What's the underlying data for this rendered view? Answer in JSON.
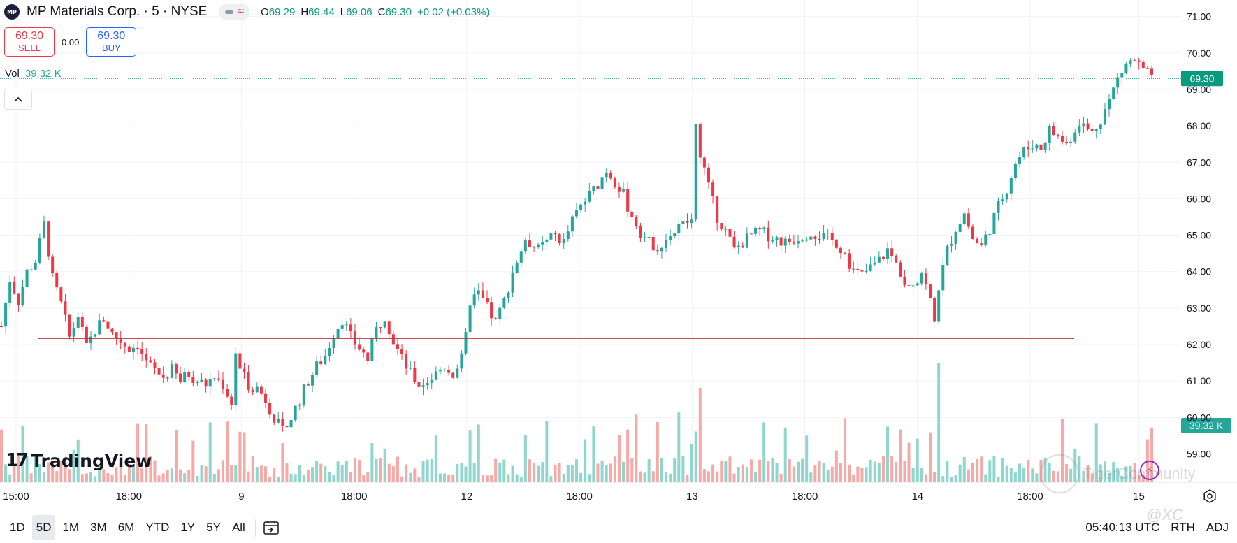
{
  "header": {
    "logo_text": "MP",
    "title": "MP Materials Corp. · 5 · NYSE",
    "status_icons": [
      "market-status-dash-icon",
      "data-delay-wave-icon"
    ],
    "ohlc": {
      "o_label": "O",
      "o": "69.29",
      "h_label": "H",
      "h": "69.44",
      "l_label": "L",
      "l": "69.06",
      "c_label": "C",
      "c": "69.30",
      "change": "+0.02 (+0.03%)"
    }
  },
  "trade": {
    "sell_price": "69.30",
    "sell_label": "SELL",
    "spread": "0.00",
    "buy_price": "69.30",
    "buy_label": "BUY"
  },
  "volume_legend": {
    "label": "Vol",
    "value": "39.32 K"
  },
  "collapse_icon": "chevron-up-icon",
  "branding": {
    "logo_mark": "17",
    "name": "TradingView"
  },
  "watermark": {
    "text": "TigerCommunity",
    "handle": "@XC"
  },
  "bottom_bar": {
    "ranges": [
      "1D",
      "5D",
      "1M",
      "3M",
      "6M",
      "YTD",
      "1Y",
      "5Y",
      "All"
    ],
    "active_range": "5D",
    "time": "05:40:13 UTC",
    "rth": "RTH",
    "adj": "ADJ"
  },
  "colors": {
    "up": "#26a69a",
    "down": "#f23645",
    "vol_up": "#8fd6cd",
    "vol_down": "#f7a9a7",
    "price_tag": "#089981",
    "horizontal_line": "#c2313c"
  },
  "chart_data": {
    "type": "candlestick",
    "symbol": "MP",
    "interval": "5",
    "y_axis": {
      "ticks": [
        "71.00",
        "70.00",
        "69.00",
        "68.00",
        "67.00",
        "66.00",
        "65.00",
        "64.00",
        "63.00",
        "62.00",
        "61.00",
        "60.00",
        "59.00"
      ],
      "range": [
        58.3,
        71.3
      ]
    },
    "x_axis": {
      "ticks": [
        "15:00",
        "18:00",
        "9",
        "18:00",
        "12",
        "18:00",
        "13",
        "18:00",
        "14",
        "18:00",
        "15"
      ]
    },
    "last_price": 69.3,
    "last_price_label": "69.30",
    "last_volume_label": "39.32 K",
    "horizontal_line": {
      "price": 62.17
    },
    "price_path": [
      [
        0,
        62.5
      ],
      [
        2,
        63.8
      ],
      [
        4,
        63.2
      ],
      [
        6,
        64.0
      ],
      [
        8,
        64.3
      ],
      [
        10,
        65.3
      ],
      [
        12,
        63.8
      ],
      [
        14,
        63.1
      ],
      [
        16,
        62.2
      ],
      [
        18,
        62.8
      ],
      [
        20,
        61.9
      ],
      [
        22,
        62.4
      ],
      [
        24,
        62.7
      ],
      [
        26,
        62.3
      ],
      [
        28,
        62.1
      ],
      [
        30,
        61.9
      ],
      [
        32,
        62.0
      ],
      [
        34,
        61.5
      ],
      [
        36,
        61.3
      ],
      [
        38,
        61.1
      ],
      [
        40,
        61.3
      ],
      [
        42,
        61.0
      ],
      [
        44,
        61.2
      ],
      [
        46,
        61.0
      ],
      [
        48,
        60.9
      ],
      [
        50,
        61.1
      ],
      [
        52,
        60.9
      ],
      [
        54,
        60.4
      ],
      [
        55,
        61.8
      ],
      [
        56,
        61.3
      ],
      [
        58,
        60.9
      ],
      [
        60,
        60.8
      ],
      [
        62,
        60.5
      ],
      [
        64,
        60.0
      ],
      [
        66,
        59.6
      ],
      [
        68,
        60.0
      ],
      [
        70,
        60.5
      ],
      [
        72,
        61.0
      ],
      [
        74,
        61.4
      ],
      [
        76,
        61.7
      ],
      [
        78,
        62.3
      ],
      [
        80,
        62.7
      ],
      [
        82,
        62.2
      ],
      [
        84,
        61.9
      ],
      [
        86,
        61.6
      ],
      [
        88,
        62.4
      ],
      [
        90,
        62.8
      ],
      [
        92,
        62.1
      ],
      [
        94,
        61.6
      ],
      [
        96,
        61.2
      ],
      [
        98,
        60.9
      ],
      [
        100,
        61.0
      ],
      [
        102,
        61.2
      ],
      [
        104,
        61.4
      ],
      [
        106,
        61.2
      ],
      [
        108,
        61.6
      ],
      [
        109,
        62.2
      ],
      [
        110,
        63.2
      ],
      [
        112,
        63.4
      ],
      [
        114,
        63.0
      ],
      [
        116,
        62.6
      ],
      [
        118,
        63.2
      ],
      [
        120,
        64.0
      ],
      [
        122,
        64.6
      ],
      [
        124,
        64.8
      ],
      [
        126,
        64.6
      ],
      [
        128,
        64.8
      ],
      [
        130,
        65.0
      ],
      [
        132,
        64.8
      ],
      [
        134,
        65.4
      ],
      [
        136,
        65.8
      ],
      [
        138,
        66.1
      ],
      [
        140,
        66.4
      ],
      [
        142,
        66.8
      ],
      [
        144,
        66.5
      ],
      [
        146,
        66.1
      ],
      [
        148,
        65.5
      ],
      [
        150,
        65.1
      ],
      [
        152,
        64.8
      ],
      [
        154,
        64.7
      ],
      [
        156,
        64.9
      ],
      [
        158,
        65.1
      ],
      [
        160,
        65.3
      ],
      [
        162,
        65.4
      ],
      [
        163,
        67.9
      ],
      [
        164,
        67.3
      ],
      [
        166,
        66.3
      ],
      [
        168,
        65.5
      ],
      [
        170,
        65.1
      ],
      [
        172,
        64.6
      ],
      [
        174,
        64.8
      ],
      [
        176,
        65.0
      ],
      [
        178,
        65.1
      ],
      [
        180,
        65.0
      ],
      [
        182,
        64.9
      ],
      [
        184,
        64.8
      ],
      [
        186,
        64.9
      ],
      [
        188,
        65.0
      ],
      [
        190,
        65.1
      ],
      [
        192,
        65.0
      ],
      [
        194,
        64.9
      ],
      [
        196,
        64.8
      ],
      [
        198,
        64.5
      ],
      [
        200,
        64.0
      ],
      [
        202,
        63.9
      ],
      [
        204,
        64.1
      ],
      [
        206,
        64.3
      ],
      [
        208,
        64.6
      ],
      [
        210,
        64.2
      ],
      [
        212,
        63.8
      ],
      [
        214,
        63.7
      ],
      [
        216,
        64.0
      ],
      [
        218,
        63.2
      ],
      [
        219,
        62.6
      ],
      [
        220,
        63.6
      ],
      [
        222,
        64.6
      ],
      [
        224,
        65.2
      ],
      [
        226,
        65.6
      ],
      [
        228,
        64.9
      ],
      [
        230,
        64.7
      ],
      [
        232,
        65.2
      ],
      [
        234,
        65.8
      ],
      [
        236,
        66.3
      ],
      [
        238,
        67.0
      ],
      [
        240,
        67.3
      ],
      [
        242,
        67.5
      ],
      [
        244,
        67.4
      ],
      [
        246,
        67.9
      ],
      [
        248,
        67.7
      ],
      [
        250,
        67.5
      ],
      [
        252,
        67.9
      ],
      [
        254,
        68.0
      ],
      [
        256,
        67.8
      ],
      [
        258,
        68.2
      ],
      [
        260,
        68.7
      ],
      [
        262,
        69.3
      ],
      [
        264,
        69.7
      ],
      [
        266,
        69.8
      ],
      [
        268,
        69.5
      ],
      [
        270,
        69.3
      ]
    ]
  }
}
